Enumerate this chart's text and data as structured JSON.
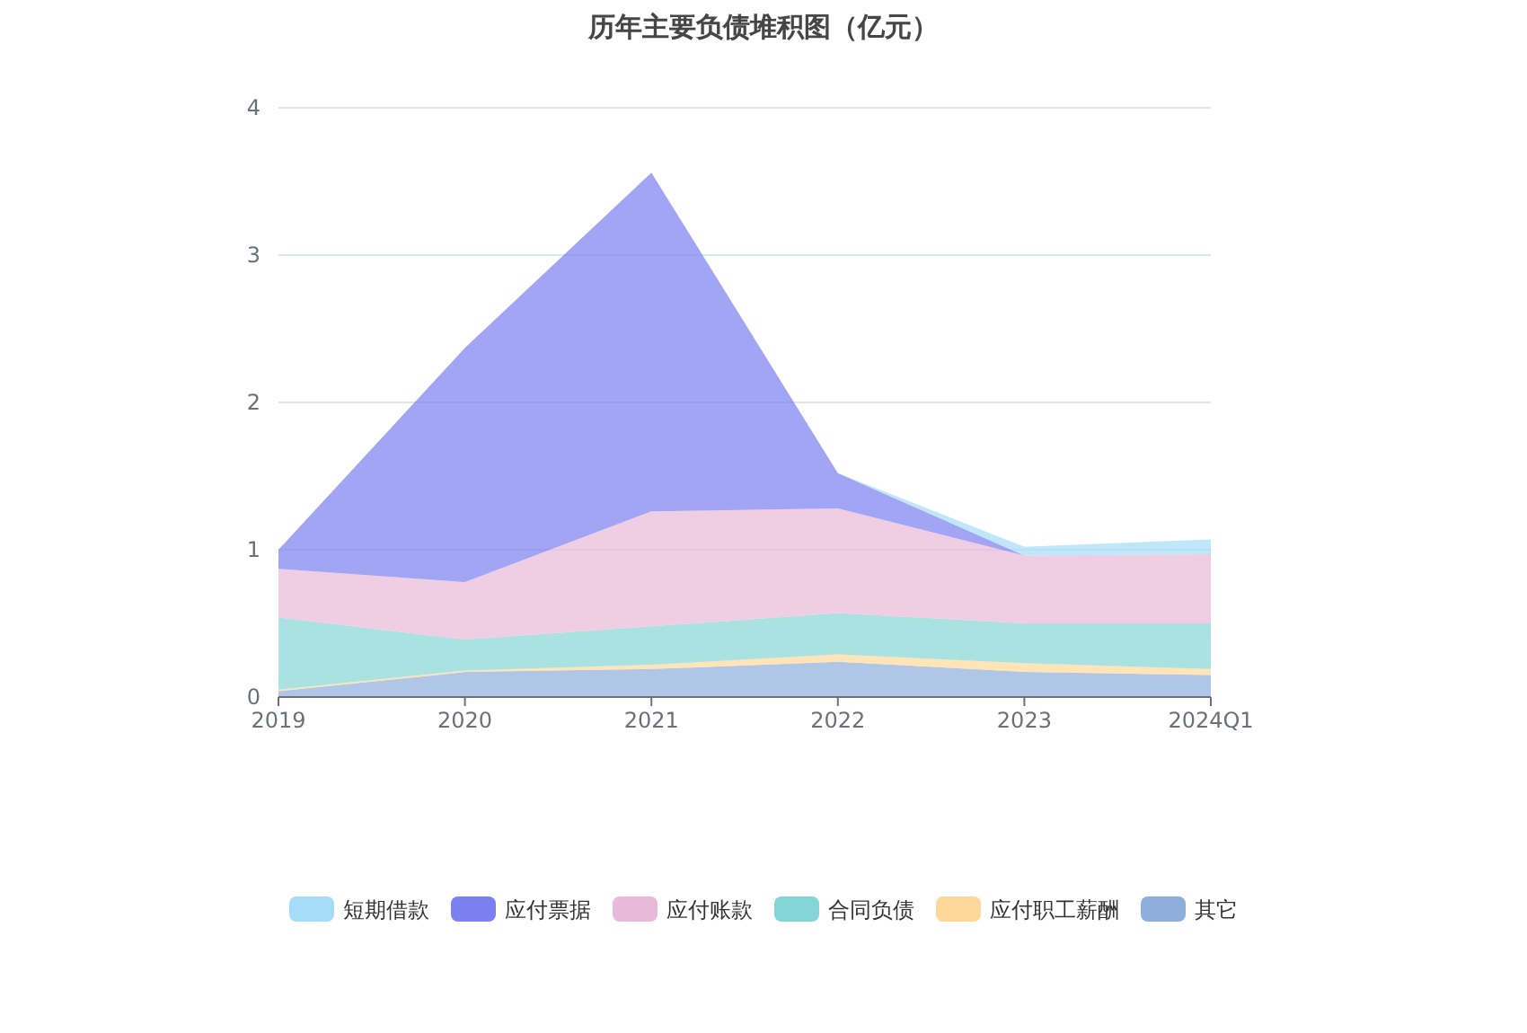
{
  "chart_data": {
    "type": "area",
    "stacked": true,
    "title": "历年主要负债堆积图（亿元）",
    "categories": [
      "2019",
      "2020",
      "2021",
      "2022",
      "2023",
      "2024Q1"
    ],
    "series": [
      {
        "name": "其它",
        "color": "#8eaedb",
        "values": [
          0.04,
          0.17,
          0.19,
          0.24,
          0.17,
          0.15
        ]
      },
      {
        "name": "应付职工薪酬",
        "color": "#fdd899",
        "values": [
          0.01,
          0.01,
          0.03,
          0.05,
          0.06,
          0.04
        ]
      },
      {
        "name": "合同负债",
        "color": "#86d5d6",
        "values": [
          0.49,
          0.21,
          0.26,
          0.28,
          0.27,
          0.31
        ]
      },
      {
        "name": "应付账款",
        "color": "#e8b9d8",
        "values": [
          0.33,
          0.39,
          0.78,
          0.71,
          0.46,
          0.47
        ]
      },
      {
        "name": "应付票据",
        "color": "#7b7ff0",
        "values": [
          0.13,
          1.59,
          2.3,
          0.24,
          0,
          0
        ]
      },
      {
        "name": "短期借款",
        "color": "#a5dcf7",
        "values": [
          0,
          0,
          0,
          0,
          0.06,
          0.1
        ]
      }
    ],
    "ylim": [
      0,
      4
    ],
    "yticks": [
      0,
      1,
      2,
      3,
      4
    ],
    "grid": "y",
    "legend": "bottom"
  }
}
